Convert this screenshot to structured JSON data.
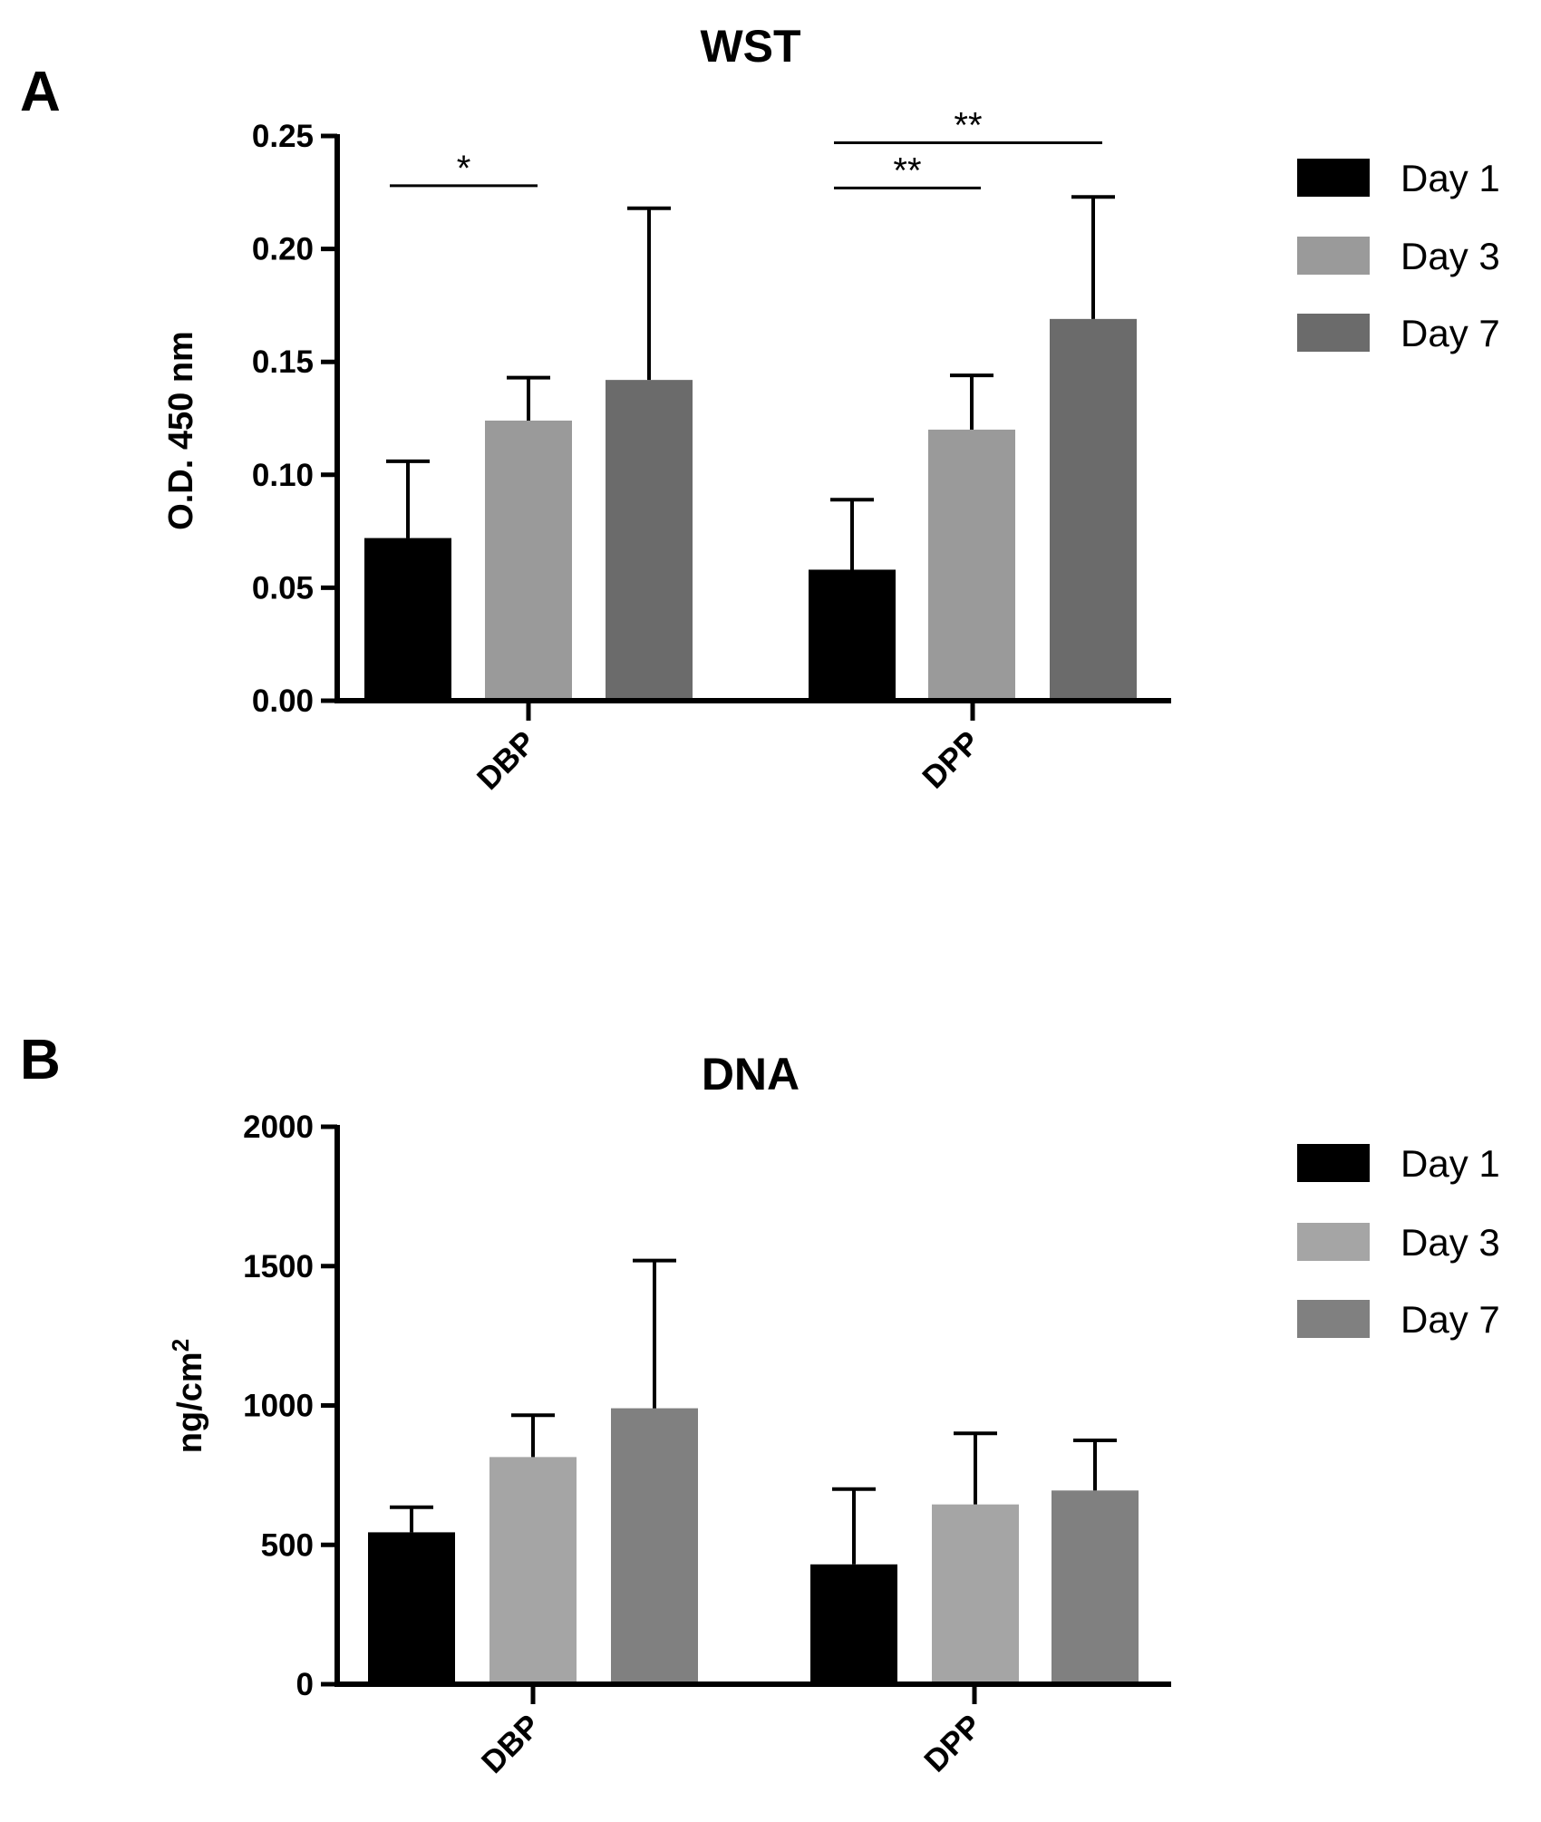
{
  "chart_data": [
    {
      "panel": "A",
      "type": "bar",
      "title": "WST",
      "xlabel": "",
      "ylabel": "O.D. 450 nm",
      "ylim": [
        0,
        0.25
      ],
      "yticks": [
        0.0,
        0.05,
        0.1,
        0.15,
        0.2,
        0.25
      ],
      "ytick_labels": [
        "0.00",
        "0.05",
        "0.10",
        "0.15",
        "0.20",
        "0.25"
      ],
      "categories": [
        "DBP",
        "DPP"
      ],
      "series": [
        {
          "name": "Day 1",
          "color": "#000000",
          "values": [
            0.072,
            0.058
          ],
          "errors": [
            0.034,
            0.031
          ]
        },
        {
          "name": "Day 3",
          "color": "#9a9a9a",
          "values": [
            0.124,
            0.12
          ],
          "errors": [
            0.019,
            0.024
          ]
        },
        {
          "name": "Day 7",
          "color": "#6b6b6b",
          "values": [
            0.142,
            0.169
          ],
          "errors": [
            0.076,
            0.054
          ]
        }
      ],
      "significance": [
        {
          "category": "DBP",
          "from": "Day 1",
          "to": "Day 3",
          "label": "*",
          "y": 0.228
        },
        {
          "category": "DPP",
          "from": "Day 1",
          "to": "Day 3",
          "label": "**",
          "y": 0.227
        },
        {
          "category": "DPP",
          "from": "Day 1",
          "to": "Day 7",
          "label": "**",
          "y": 0.247
        }
      ],
      "legend": [
        "Day 1",
        "Day 3",
        "Day 7"
      ],
      "legend_position": "right"
    },
    {
      "panel": "B",
      "type": "bar",
      "title": "DNA",
      "xlabel": "",
      "ylabel": "ng/cm",
      "ylabel_superscript": "2",
      "ylim": [
        0,
        2000
      ],
      "yticks": [
        0,
        500,
        1000,
        1500,
        2000
      ],
      "ytick_labels": [
        "0",
        "500",
        "1000",
        "1500",
        "2000"
      ],
      "categories": [
        "DBP",
        "DPP"
      ],
      "series": [
        {
          "name": "Day 1",
          "color": "#000000",
          "values": [
            545,
            430
          ],
          "errors": [
            90,
            270
          ]
        },
        {
          "name": "Day 3",
          "color": "#a5a5a5",
          "values": [
            815,
            645
          ],
          "errors": [
            150,
            255
          ]
        },
        {
          "name": "Day 7",
          "color": "#808080",
          "values": [
            990,
            695
          ],
          "errors": [
            530,
            180
          ]
        }
      ],
      "significance": [],
      "legend": [
        "Day 1",
        "Day 3",
        "Day 7"
      ],
      "legend_position": "right"
    }
  ]
}
